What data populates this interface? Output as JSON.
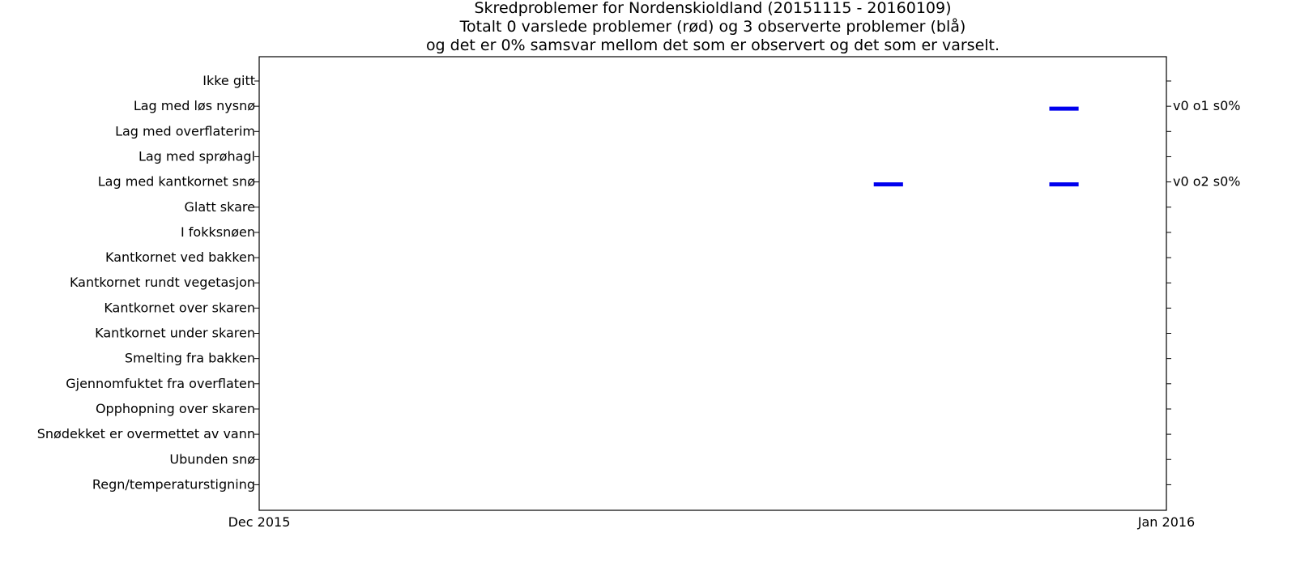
{
  "chart_data": {
    "type": "timeline",
    "title_lines": [
      "Skredproblemer for Nordenskioldland (20151115 - 20160109)",
      "Totalt 0 varslede problemer (rød) og 3 observerte problemer (blå)",
      "og det er 0% samsvar mellom det som er observert og det som er varselt."
    ],
    "categories": [
      "Ikke gitt",
      "Lag med løs nysnø",
      "Lag med overflaterim",
      "Lag med sprøhagl",
      "Lag med kantkornet snø",
      "Glatt skare",
      "I fokksnøen",
      "Kantkornet ved bakken",
      "Kantkornet rundt vegetasjon",
      "Kantkornet over skaren",
      "Kantkornet under skaren",
      "Smelting fra bakken",
      "Gjennomfuktet fra overflaten",
      "Opphopning over skaren",
      "Snødekket er overmettet av vann",
      "Ubunden snø",
      "Regn/temperaturstigning"
    ],
    "x_range": [
      "2015-12-01",
      "2016-01-01"
    ],
    "x_ticks": [
      {
        "date": "2015-12-01",
        "label": "Dec 2015"
      },
      {
        "date": "2016-01-01",
        "label": "Jan 2016"
      }
    ],
    "series": [
      {
        "name": "observerte problemer",
        "color": "#0000ee",
        "segments": [
          {
            "category": "Lag med løs nysnø",
            "start": "2015-12-28",
            "end": "2015-12-29"
          },
          {
            "category": "Lag med kantkornet snø",
            "start": "2015-12-22",
            "end": "2015-12-23"
          },
          {
            "category": "Lag med kantkornet snø",
            "start": "2015-12-28",
            "end": "2015-12-29"
          }
        ]
      },
      {
        "name": "varslede problemer",
        "color": "#ff0000",
        "segments": []
      }
    ],
    "side_labels": [
      {
        "category": "Lag med løs nysnø",
        "text": "v0 o1 s0%"
      },
      {
        "category": "Lag med kantkornet snø",
        "text": "v0 o2 s0%"
      }
    ],
    "grid": false
  }
}
